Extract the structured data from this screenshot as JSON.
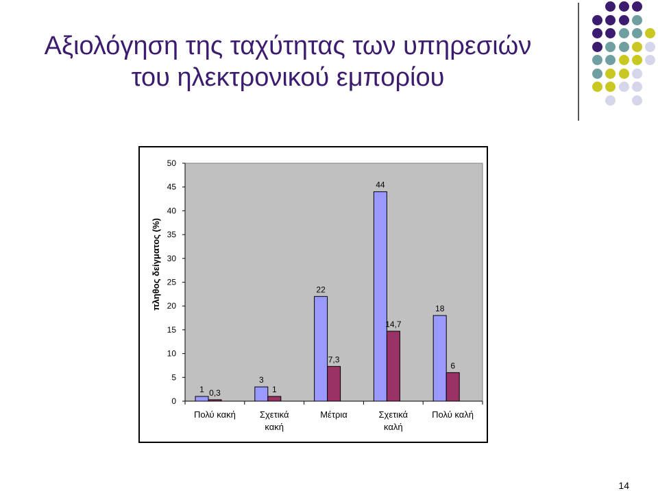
{
  "slide": {
    "title_line1": "Αξιολόγηση της ταχύτητας των υπηρεσιών",
    "title_line2": "του ηλεκτρονικού εμπορίου",
    "page_number": "14"
  },
  "colors": {
    "title": "#3c1c6e",
    "dot_purple": "#3c1c6e",
    "dot_teal": "#6f9fa0",
    "dot_yellow": "#c9c823",
    "dot_lavender": "#d6d6ea",
    "series1": "#9999ff",
    "series2": "#993366",
    "plot_bg": "#c0c0c0"
  },
  "chart_data": {
    "type": "bar",
    "title": "",
    "xlabel": "",
    "ylabel": "πληθος δείγματος (%)",
    "ylim": [
      0,
      50
    ],
    "yticks": [
      0,
      5,
      10,
      15,
      20,
      25,
      30,
      35,
      40,
      45,
      50
    ],
    "grid": false,
    "legend": "none",
    "categories": [
      [
        "Πολύ κακή"
      ],
      [
        "Σχετικά",
        "κακή"
      ],
      [
        "Μέτρια"
      ],
      [
        "Σχετικά",
        "καλή"
      ],
      [
        "Πολύ καλή"
      ]
    ],
    "series": [
      {
        "values": [
          1,
          3,
          22,
          44,
          18
        ],
        "labels": [
          "1",
          "3",
          "22",
          "44",
          "18"
        ]
      },
      {
        "values": [
          0.3,
          1,
          7.3,
          14.7,
          6
        ],
        "labels": [
          "0,3",
          "1",
          "7,3",
          "14,7",
          "6"
        ]
      }
    ]
  }
}
